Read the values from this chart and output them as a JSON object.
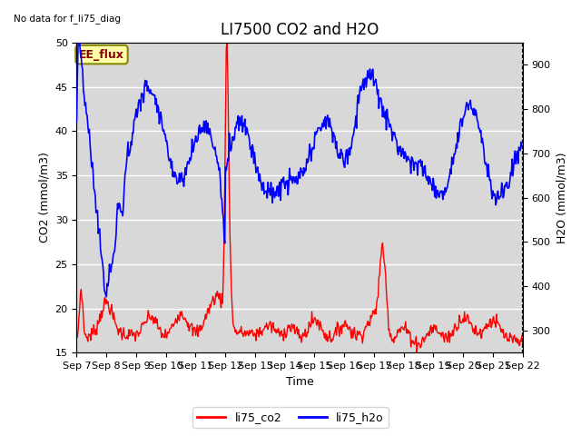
{
  "title": "LI7500 CO2 and H2O",
  "top_left_text": "No data for f_li75_diag",
  "xlabel": "Time",
  "ylabel_left": "CO2 (mmol/m3)",
  "ylabel_right": "H2O (mmol/m3)",
  "ylim_left": [
    15,
    50
  ],
  "ylim_right": [
    250,
    950
  ],
  "x_tick_labels": [
    "Sep 7",
    "Sep 8",
    "Sep 9",
    "Sep 10",
    "Sep 11",
    "Sep 12",
    "Sep 13",
    "Sep 14",
    "Sep 15",
    "Sep 16",
    "Sep 17",
    "Sep 18",
    "Sep 19",
    "Sep 20",
    "Sep 21",
    "Sep 22"
  ],
  "box_label": "EE_flux",
  "box_facecolor": "#ffffaa",
  "box_edgecolor": "#888800",
  "legend_labels": [
    "li75_co2",
    "li75_h2o"
  ],
  "legend_colors": [
    "red",
    "blue"
  ],
  "plot_bg_color": "#d8d8d8",
  "grid_color": "#bbbbbb",
  "co2_color": "red",
  "h2o_color": "blue",
  "title_fontsize": 12,
  "label_fontsize": 9,
  "tick_fontsize": 8
}
